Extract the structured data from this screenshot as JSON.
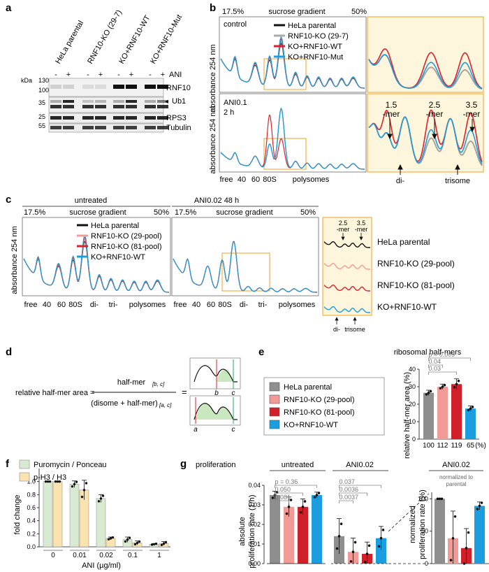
{
  "panels": {
    "a": {
      "letter": "a",
      "lanes": [
        "HeLa parental",
        "RNF10-KO (29-7)",
        "KO+RNF10-WT",
        "KO+RNF10-Mut"
      ],
      "ani_signs": [
        "-",
        "+",
        "-",
        "+",
        "-",
        "+",
        "-",
        "+"
      ],
      "ani_label": "ANI",
      "kda_label": "kDa",
      "markers": [
        "130",
        "100",
        "35",
        "25",
        "55"
      ],
      "bands": [
        "RNF10",
        "Ub1",
        "RPS3",
        "Tubulin"
      ],
      "ub_arrow": "◂"
    },
    "b": {
      "letter": "b",
      "gradient_left": "17.5%",
      "gradient_mid": "sucrose gradient",
      "gradient_right": "50%",
      "control": "control",
      "ani": "ANI0.1",
      "ani_time": "2 h",
      "ylabel": "absorbance 254 nm",
      "legend": [
        "HeLa parental",
        "RNF10-KO (29-7)",
        "KO+RNF10-WT",
        "KO+RNF10-Mut"
      ],
      "peaks_x": [
        "free",
        "40",
        "60",
        "80S",
        "polysomes"
      ],
      "mers": [
        "1.5",
        "-mer",
        "2.5",
        "-mer",
        "3.5",
        "-mer"
      ],
      "zoom_x": [
        "di-",
        "trisome"
      ]
    },
    "c": {
      "letter": "c",
      "untreated": "untreated",
      "ani": "ANI0.02 48 h",
      "gradient_left": "17.5%",
      "gradient_mid": "sucrose gradient",
      "gradient_right": "50%",
      "ylabel": "absorbance 254 nm",
      "legend": [
        "HeLa parental",
        "RNF10-KO (29-pool)",
        "RNF10-KO (81-pool)",
        "KO+RNF10-WT"
      ],
      "peaks_x": [
        "free",
        "40",
        "60",
        "80S",
        "di-",
        "tri-",
        "polysomes"
      ],
      "mers": [
        "2.5",
        "-mer",
        "3.5",
        "-mer"
      ],
      "zoom_x": [
        "di-",
        "trisome"
      ]
    },
    "d": {
      "letter": "d",
      "lhs": "relative half-mer area =",
      "num": "half-mer",
      "num_sub": "[b, c]",
      "den": "(disome + half-mer)",
      "den_sub": "[a, c]",
      "eq": "=",
      "b": "b",
      "c": "c",
      "a": "a"
    },
    "e": {
      "letter": "e",
      "legend": [
        "HeLa parental",
        "RNF10-KO (29-pool)",
        "RNF10-KO (81-pool)",
        "KO+RNF10-WT"
      ],
      "percent_unit": "(%)"
    },
    "f": {
      "letter": "f"
    },
    "g": {
      "letter": "g",
      "title": "proliferation",
      "untreated": "untreated",
      "ani": "ANI0.02",
      "ani_right": "ANI0.02",
      "norm_note_1": "normalized to",
      "norm_note_2": "parental",
      "pvals_untreated": [
        "p = 0.36",
        "0.050",
        "0.081"
      ],
      "pvals_ani": [
        "0.037",
        "0.0036",
        "0.0037"
      ]
    }
  },
  "colors": {
    "black": "#111111",
    "gray": "#a9a9a9",
    "red": "#e0202a",
    "blue": "#1a9ee0",
    "pink": "#f29b96",
    "darkred": "#d0202a",
    "bar_gray": "#8e8e8e",
    "green": "#d9ead3",
    "yellow": "#fbe3b0",
    "zoom_bg": "#fdf6dc",
    "orange": "#f0a020"
  },
  "chart_data": [
    {
      "id": "e",
      "type": "bar",
      "title": "ribosomal half-mers",
      "ylabel": "relative half-mer area (%)",
      "categories": [
        "HeLa parental",
        "RNF10-KO (29-pool)",
        "RNF10-KO (81-pool)",
        "KO+RNF10-WT"
      ],
      "values": [
        26.5,
        30,
        31.5,
        17.5
      ],
      "errors": [
        1.5,
        1.5,
        3.0,
        1.5
      ],
      "relative_labels": [
        "100",
        "112",
        "119",
        "65"
      ],
      "ylim": [
        0,
        40
      ],
      "yticks": [
        "0",
        "10",
        "20",
        "30",
        "40"
      ],
      "pvalues": [
        "p = 0.009",
        "0.04",
        "0.03"
      ]
    },
    {
      "id": "f",
      "type": "bar",
      "ylabel": "fold change",
      "xlabel": "ANI (µg/ml)",
      "categories": [
        "0",
        "0.01",
        "0.02",
        "0.1",
        "1"
      ],
      "ylim": [
        0,
        1.2
      ],
      "yticks": [
        "0.0",
        "0.2",
        "0.4",
        "0.6",
        "0.8",
        "1.0"
      ],
      "series": [
        {
          "name": "Puromycin / Ponceau",
          "values": [
            1.0,
            0.96,
            0.74,
            0.11,
            0.04
          ],
          "errors": [
            0.0,
            0.05,
            0.06,
            0.04,
            0.01
          ]
        },
        {
          "name": "p-H3 / H3",
          "values": [
            1.0,
            0.87,
            0.13,
            0.06,
            0.05
          ],
          "errors": [
            0.0,
            0.15,
            0.02,
            0.03,
            0.03
          ]
        }
      ]
    },
    {
      "id": "g-absolute",
      "type": "bar",
      "ylabel": "absolute proliferation rate (1/h)",
      "groups": [
        "untreated",
        "ANI0.02"
      ],
      "categories": [
        "HeLa parental",
        "RNF10-KO (29-pool)",
        "RNF10-KO (81-pool)",
        "KO+RNF10-WT"
      ],
      "ylim": [
        0,
        0.04
      ],
      "yticks": [
        "0.00",
        "0.01",
        "0.02",
        "0.03",
        "0.04"
      ],
      "series": [
        {
          "name": "untreated",
          "values": [
            0.035,
            0.029,
            0.029,
            0.035
          ],
          "errors": [
            0.002,
            0.005,
            0.004,
            0.0015
          ]
        },
        {
          "name": "ANI0.02",
          "values": [
            0.014,
            0.006,
            0.005,
            0.013
          ],
          "errors": [
            0.009,
            0.007,
            0.006,
            0.006
          ]
        }
      ]
    },
    {
      "id": "g-normalized",
      "type": "bar",
      "ylabel": "normalized proliferation rate (%)",
      "categories": [
        "HeLa parental",
        "RNF10-KO (29-pool)",
        "RNF10-KO (81-pool)",
        "KO+RNF10-WT"
      ],
      "values": [
        100,
        39,
        24,
        89
      ],
      "errors": [
        0,
        42,
        30,
        6
      ],
      "ylim": [
        0,
        110
      ],
      "yticks": [
        "0",
        "50",
        "100"
      ]
    }
  ]
}
